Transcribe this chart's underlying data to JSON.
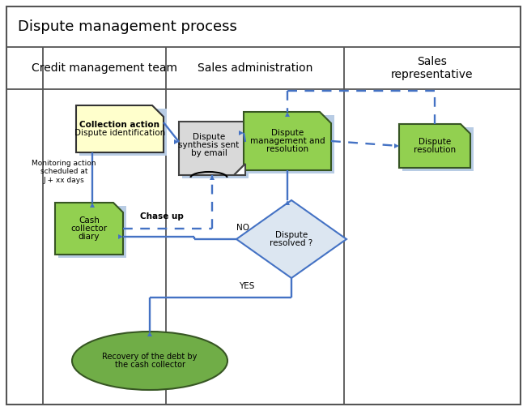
{
  "title": "Dispute management process",
  "col_labels": [
    "Credit management team",
    "Sales administration",
    "Sales\nrepresentative"
  ],
  "bg_color": "#ffffff",
  "blue": "#4472c4",
  "green_fill": "#92d050",
  "green_border": "#375623",
  "yellow_fill": "#ffffcc",
  "diamond_fill": "#dce6f1",
  "diamond_border": "#4472c4",
  "ellipse_fill": "#70ad47",
  "ellipse_border": "#375623",
  "shadow_color": "#b8cce4",
  "note_fill": "#d9d9d9",
  "note_border": "#444444",
  "line_color": "#555555",
  "outer_border": "#888888"
}
